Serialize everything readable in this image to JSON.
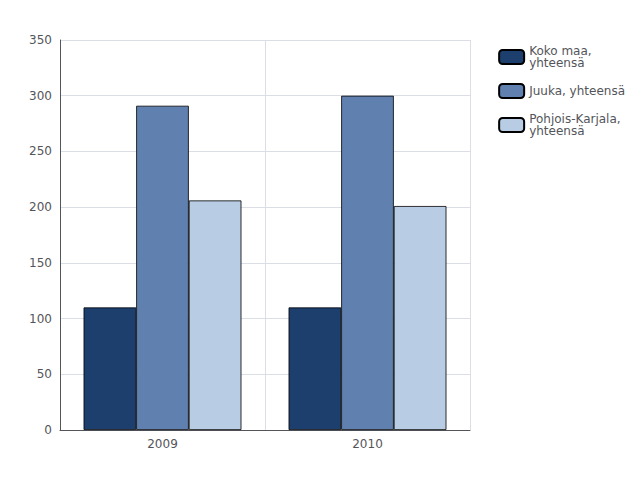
{
  "chart_data": {
    "type": "bar",
    "categories": [
      "2009",
      "2010"
    ],
    "series": [
      {
        "name": "Koko maa,\nyhteensä",
        "color": "#1c3f6e",
        "values": [
          110,
          110
        ]
      },
      {
        "name": "Juuka, yhteensä",
        "color": "#6080b0",
        "values": [
          291,
          300
        ]
      },
      {
        "name": "Pohjois-Karjala,\nyhteensä",
        "color": "#b8cce4",
        "values": [
          206,
          201
        ]
      }
    ],
    "ylim": [
      0,
      350
    ],
    "yticks": [
      0,
      50,
      100,
      150,
      200,
      250,
      300,
      350
    ],
    "grid": true,
    "legend": "upper right"
  }
}
